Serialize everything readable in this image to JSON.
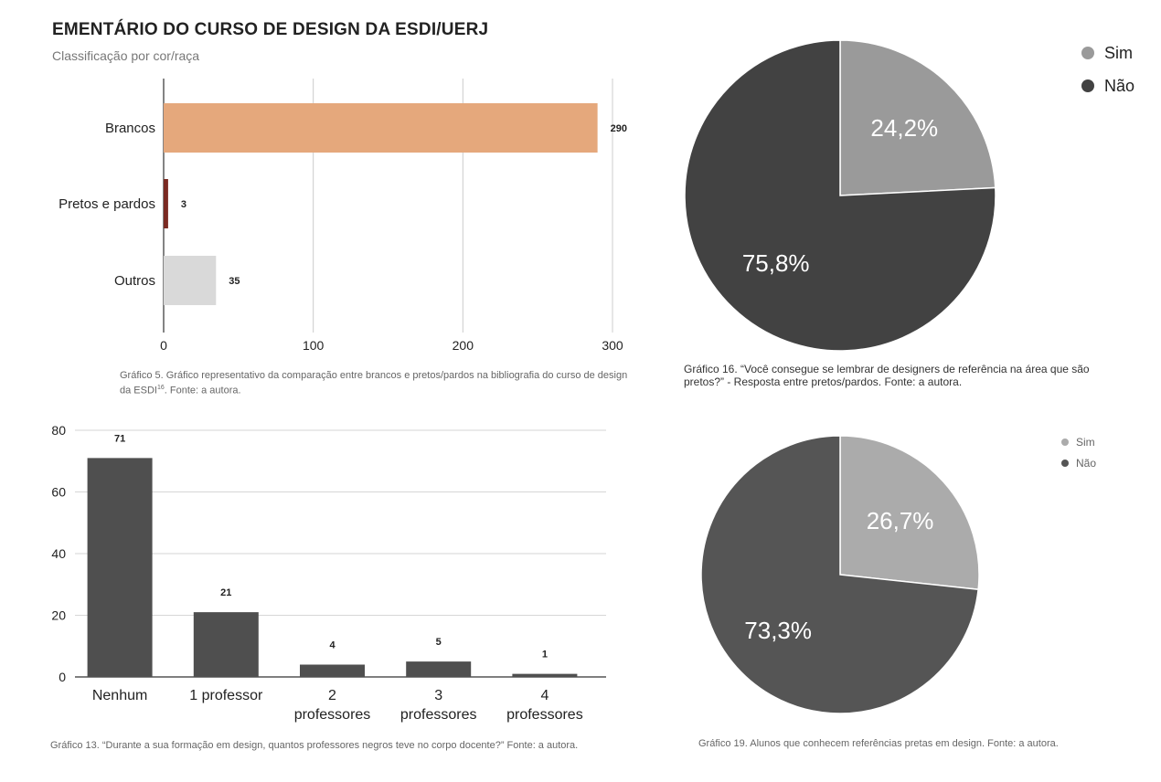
{
  "chart1": {
    "title": "EMENTÁRIO DO CURSO DE DESIGN DA ESDI/UERJ",
    "subtitle": "Classificação por cor/raça",
    "caption_main": "Gráfico 5. Gráfico representativo da comparação entre brancos e pretos/pardos na bibliografia do curso de design da ESDI",
    "caption_sup": "16",
    "caption_tail": ". Fonte: a autora."
  },
  "chart2": {
    "caption": "Gráfico 16. “Você consegue se lembrar de designers de referência na área que são pretos?” - Resposta entre pretos/pardos. Fonte: a autora."
  },
  "chart3": {
    "caption": "Gráfico 13. “Durante a sua formação em design, quantos professores negros teve no corpo docente?” Fonte: a autora."
  },
  "chart4": {
    "caption": "Gráfico 19. Alunos que conhecem referências pretas em design. Fonte: a autora."
  },
  "chart_data": [
    {
      "type": "bar",
      "orientation": "horizontal",
      "title": "EMENTÁRIO DO CURSO DE DESIGN DA ESDI/UERJ",
      "subtitle": "Classificação por cor/raça",
      "categories": [
        "Brancos",
        "Pretos e pardos",
        "Outros"
      ],
      "values": [
        290,
        3,
        35
      ],
      "colors": [
        "#e5a87c",
        "#7a2a22",
        "#d9d9d9"
      ],
      "xlim": [
        0,
        300
      ],
      "xticks": [
        0,
        100,
        200,
        300
      ],
      "grid": true
    },
    {
      "type": "pie",
      "labels": [
        "Sim",
        "Não"
      ],
      "values": [
        24.2,
        75.8
      ],
      "value_labels": [
        "24,2%",
        "75,8%"
      ],
      "colors": [
        "#9a9a9a",
        "#424242"
      ],
      "legend": "top-right"
    },
    {
      "type": "bar",
      "orientation": "vertical",
      "categories": [
        "Nenhum",
        "1 professor",
        "2 professores",
        "3 professores",
        "4 professores"
      ],
      "category_lines": [
        [
          "Nenhum"
        ],
        [
          "1 professor"
        ],
        [
          "2",
          "professores"
        ],
        [
          "3",
          "professores"
        ],
        [
          "4",
          "professores"
        ]
      ],
      "values": [
        71,
        21,
        4,
        5,
        1
      ],
      "color": "#4f4f4f",
      "ylim": [
        0,
        80
      ],
      "yticks": [
        0,
        20,
        40,
        60,
        80
      ],
      "grid": true
    },
    {
      "type": "pie",
      "labels": [
        "Sim",
        "Não"
      ],
      "values": [
        26.7,
        73.3
      ],
      "value_labels": [
        "26,7%",
        "73,3%"
      ],
      "colors": [
        "#ababab",
        "#555555"
      ],
      "legend": "top-right"
    }
  ]
}
